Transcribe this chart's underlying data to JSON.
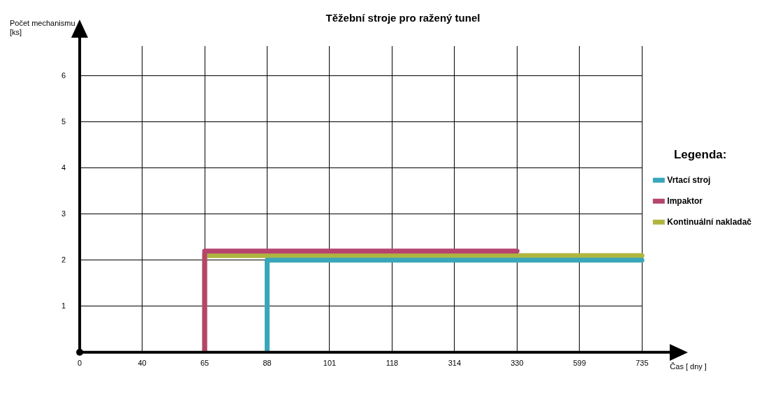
{
  "chart_data": {
    "type": "line",
    "title": "Těžební stroje pro ražený tunel",
    "xlabel": "Čas [ dny ]",
    "ylabel": "Počet mechanismu [ks]",
    "legend_title": "Legenda:",
    "categories": [
      "0",
      "40",
      "65",
      "88",
      "101",
      "118",
      "314",
      "330",
      "599",
      "735"
    ],
    "series": [
      {
        "name": "Vrtací stroj",
        "color": "#3aa6b9",
        "x": [
          "88",
          "88",
          "735"
        ],
        "values": [
          0,
          2,
          2
        ]
      },
      {
        "name": "Impaktor",
        "color": "#b5446e",
        "x": [
          "65",
          "65",
          "330"
        ],
        "values": [
          0,
          2.2,
          2.2
        ]
      },
      {
        "name": "Kontinuální nakladač",
        "color": "#b0b540",
        "x": [
          "65",
          "65",
          "735"
        ],
        "values": [
          0,
          2.1,
          2.1
        ]
      }
    ],
    "ylim": [
      0,
      6.65
    ],
    "yticks": [
      1,
      2,
      3,
      4,
      5,
      6
    ],
    "grid": true,
    "legend": "right",
    "marker": "none",
    "line_style": "solid"
  }
}
